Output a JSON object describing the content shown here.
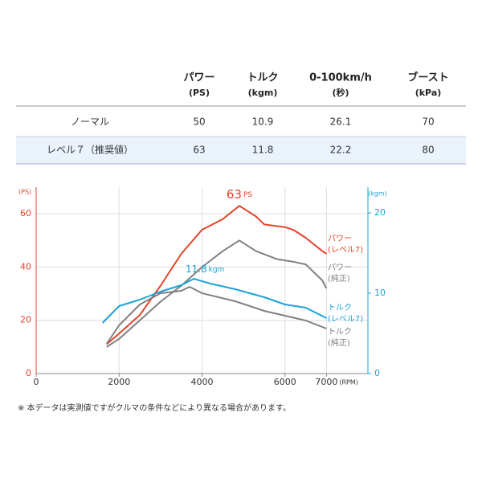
{
  "table": {
    "columns": [
      {
        "name": "パワー",
        "unit": "(PS)"
      },
      {
        "name": "トルク",
        "unit": "(kgm)"
      },
      {
        "name": "0-100km/h",
        "unit": "(秒)"
      },
      {
        "name": "ブースト",
        "unit": "(kPa)"
      }
    ],
    "rows": [
      [
        "ノーマル",
        "50",
        "10.9",
        "26.1",
        "70"
      ],
      [
        "レベル７（推奨値）",
        "63",
        "11.8",
        "22.2",
        "80"
      ]
    ]
  },
  "chart_data": {
    "type": "line",
    "y_label": "(PS)",
    "y2_label": "(kgm)",
    "x_label": "(RPM)",
    "xlim": [
      0,
      8000
    ],
    "xticks": [
      0,
      2000,
      4000,
      6000,
      7000
    ],
    "ylim": [
      0,
      70
    ],
    "yticks": [
      0,
      20,
      40,
      60
    ],
    "y2lim": [
      0,
      23.2
    ],
    "y2ticks": [
      0,
      10,
      20
    ],
    "y_color": "#e0452a",
    "y2_color": "#1ba3d6",
    "grid": true,
    "series": [
      {
        "name": "パワー\n(レベル7)",
        "color": "#e0452a",
        "x": [
          1700,
          2000,
          2500,
          3000,
          3500,
          4000,
          4500,
          4900,
          5300,
          5500,
          6000,
          6200,
          6500,
          6900,
          7000
        ],
        "values": [
          11,
          15,
          22,
          33,
          45,
          54,
          58,
          63,
          59,
          56,
          55,
          54,
          51,
          46,
          45
        ]
      },
      {
        "name": "パワー\n(純正)",
        "color": "#808080",
        "x": [
          1700,
          2000,
          2500,
          3000,
          3500,
          4000,
          4500,
          4900,
          5300,
          5800,
          6200,
          6500,
          6900,
          7000
        ],
        "values": [
          10,
          13,
          20,
          27,
          33,
          40,
          46,
          50,
          46,
          43,
          42,
          41,
          35,
          32
        ]
      },
      {
        "name": "トルク\n(レベル7)",
        "color": "#1ba3d6",
        "axis": "y2",
        "x": [
          1600,
          2000,
          2500,
          3000,
          3500,
          3800,
          4200,
          4800,
          5500,
          6000,
          6500,
          7000
        ],
        "values": [
          6.3,
          8.4,
          9.2,
          10.2,
          11,
          11.8,
          11.2,
          10.5,
          9.5,
          8.6,
          8.2,
          6.9
        ]
      },
      {
        "name": "トルク\n(純正)",
        "color": "#808080",
        "axis": "y2",
        "x": [
          1700,
          2000,
          2500,
          3000,
          3500,
          3700,
          4000,
          4800,
          5500,
          6000,
          6500,
          7000
        ],
        "values": [
          3.7,
          6.0,
          8.6,
          10.0,
          10.3,
          10.8,
          10.0,
          9.0,
          7.8,
          7.2,
          6.6,
          5.6
        ]
      }
    ],
    "annotations": [
      {
        "value": 63,
        "unit": "PS",
        "series": 0,
        "point": 7
      },
      {
        "value": 11.8,
        "unit": "kgm",
        "series": 2,
        "point": 5
      }
    ]
  },
  "footnote": "※ 本データは実測値ですがクルマの条件などにより異なる場合があります。"
}
